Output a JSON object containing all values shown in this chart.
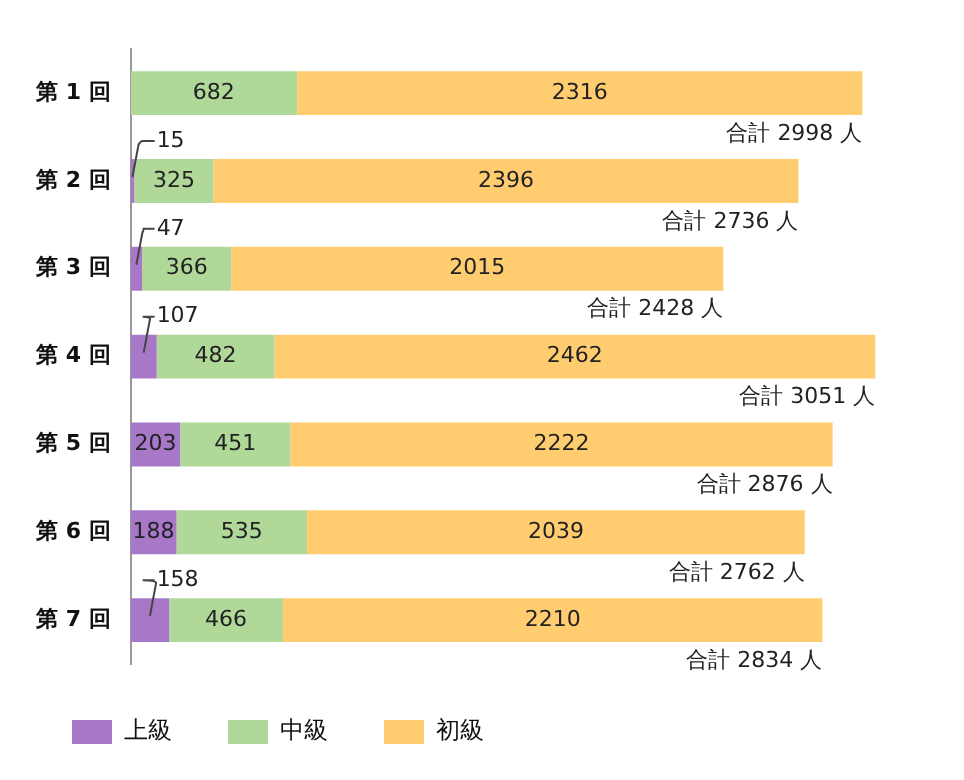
{
  "chart_data": {
    "type": "bar",
    "orientation": "horizontal",
    "stacked": true,
    "legend": "bottom",
    "categories": [
      "第 1 回",
      "第 2 回",
      "第 3 回",
      "第 4 回",
      "第 5 回",
      "第 6 回",
      "第 7 回"
    ],
    "series": [
      {
        "name": "上級",
        "color": "#a878c8",
        "values": [
          0,
          15,
          47,
          107,
          203,
          188,
          158
        ],
        "value_labels": [
          null,
          "15",
          "47",
          "107",
          "203",
          "188",
          "158"
        ]
      },
      {
        "name": "中級",
        "color": "#b0d898",
        "values": [
          682,
          325,
          366,
          482,
          451,
          535,
          466
        ],
        "value_labels": [
          "682",
          "325",
          "366",
          "482",
          "451",
          "535",
          "466"
        ]
      },
      {
        "name": "初級",
        "color": "#ffcc70",
        "values": [
          2316,
          2396,
          2015,
          2462,
          2222,
          2039,
          2210
        ],
        "value_labels": [
          "2316",
          "2396",
          "2015",
          "2462",
          "2222",
          "2039",
          "2210"
        ]
      }
    ],
    "totals": [
      "合計 2998 人",
      "合計 2736 人",
      "合計 2428 人",
      "合計 3051 人",
      "合計 2876 人",
      "合計 2762 人",
      "合計 2834 人"
    ]
  }
}
